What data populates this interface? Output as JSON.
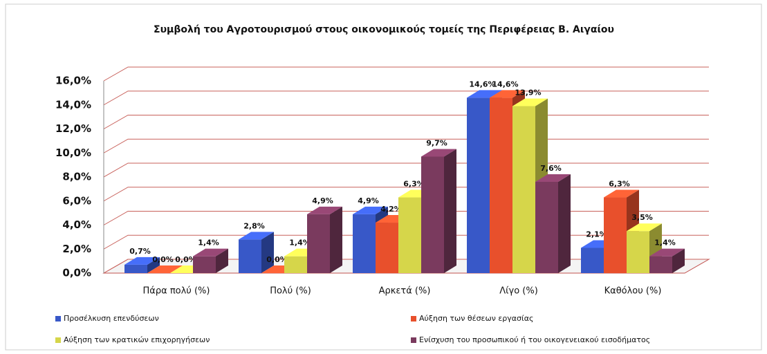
{
  "chart_data": {
    "type": "bar3d",
    "title": "Συμβολή του Αγροτουρισμού στους οικονομικούς τομείς της Περιφέρειας Β. Αιγαίου",
    "categories": [
      "Πάρα πολύ (%)",
      "Πολύ (%)",
      "Αρκετά (%)",
      "Λίγο (%)",
      "Καθόλου (%)"
    ],
    "series": [
      {
        "name": "Προσέλκυση επενδύσεων",
        "color": "#3858c8",
        "values": [
          0.7,
          2.8,
          4.9,
          14.6,
          2.1
        ],
        "value_labels": [
          "0,7%",
          "2,8%",
          "4,9%",
          "14,6%",
          "2,1%"
        ]
      },
      {
        "name": "Αύξηση των θέσεων εργασίας",
        "color": "#e8502c",
        "values": [
          0.0,
          0.0,
          4.2,
          14.6,
          6.3
        ],
        "value_labels": [
          "0,0%",
          "0,0%",
          "4,2%",
          "14,6%",
          "6,3%"
        ]
      },
      {
        "name": "Αύξηση των κρατικών επιχορηγήσεων",
        "color": "#d6d64a",
        "values": [
          0.0,
          1.4,
          6.3,
          13.9,
          3.5
        ],
        "value_labels": [
          "0,0%",
          "1,4%",
          "6,3%",
          "13,9%",
          "3,5%"
        ]
      },
      {
        "name": "Ενίσχυση του προσωπικού ή του οικογενειακού εισοδήματος",
        "color": "#7a3a5e",
        "values": [
          1.4,
          4.9,
          9.7,
          7.6,
          1.4
        ],
        "value_labels": [
          "1,4%",
          "4,9%",
          "9,7%",
          "7,6%",
          "1,4%"
        ]
      }
    ],
    "ylim": [
      0,
      16
    ],
    "yticks": [
      {
        "value": 0,
        "label": "0,0%"
      },
      {
        "value": 2,
        "label": "2,0%"
      },
      {
        "value": 4,
        "label": "4,0%"
      },
      {
        "value": 6,
        "label": "6,0%"
      },
      {
        "value": 8,
        "label": "8,0%"
      },
      {
        "value": 10,
        "label": "10,0%"
      },
      {
        "value": 12,
        "label": "12,0%"
      },
      {
        "value": 14,
        "label": "14,0%"
      },
      {
        "value": 16,
        "label": "16,0%"
      }
    ],
    "grid": true,
    "legend": "bottom"
  }
}
